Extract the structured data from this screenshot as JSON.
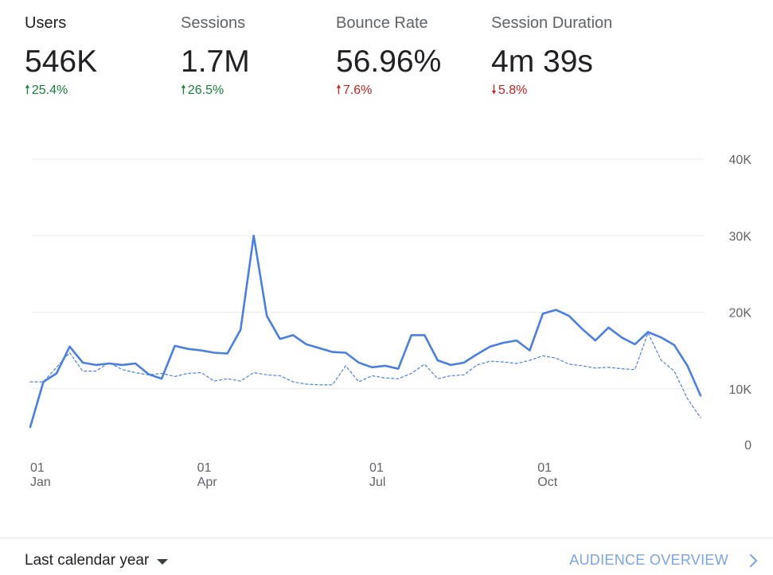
{
  "metrics": [
    {
      "label": "Users",
      "value": "546K",
      "change": "25.4%",
      "direction": "up",
      "sentiment": "good",
      "active": true
    },
    {
      "label": "Sessions",
      "value": "1.7M",
      "change": "26.5%",
      "direction": "up",
      "sentiment": "good",
      "active": false
    },
    {
      "label": "Bounce Rate",
      "value": "56.96%",
      "change": "7.6%",
      "direction": "up",
      "sentiment": "bad",
      "active": false
    },
    {
      "label": "Session Duration",
      "value": "4m 39s",
      "change": "5.8%",
      "direction": "down",
      "sentiment": "bad",
      "active": false
    }
  ],
  "colors": {
    "good": "#188038",
    "bad": "#c5221f",
    "line": "#4a7fe0",
    "link": "#7ba3e8"
  },
  "chart_data": {
    "type": "line",
    "y_ticks": [
      "40K",
      "30K",
      "20K",
      "10K",
      "0"
    ],
    "y_tick_values": [
      40000,
      30000,
      20000,
      10000,
      0
    ],
    "ylim": [
      0,
      40000
    ],
    "x_ticks": [
      {
        "day": "01",
        "month": "Jan",
        "week": 0
      },
      {
        "day": "01",
        "month": "Apr",
        "week": 12.7
      },
      {
        "day": "01",
        "month": "Jul",
        "week": 25.8
      },
      {
        "day": "01",
        "month": "Oct",
        "week": 38.6
      }
    ],
    "grid": true,
    "series": [
      {
        "style": "solid",
        "values": [
          5000,
          10900,
          12000,
          15500,
          13400,
          13100,
          13300,
          13100,
          13300,
          11900,
          11300,
          15600,
          15200,
          15000,
          14700,
          14600,
          17700,
          30000,
          19500,
          16500,
          17000,
          15800,
          15300,
          14800,
          14700,
          13400,
          12800,
          13000,
          12600,
          17000,
          17000,
          13700,
          13100,
          13400,
          14500,
          15500,
          16000,
          16300,
          15000,
          19800,
          20300,
          19500,
          17800,
          16300,
          18000,
          16700,
          15800,
          17400,
          16700,
          15700,
          13000,
          9100
        ]
      },
      {
        "style": "dashed",
        "values": [
          10900,
          10900,
          12800,
          14700,
          12300,
          12300,
          13400,
          12500,
          12100,
          11800,
          12000,
          11600,
          12000,
          12100,
          11000,
          11300,
          11000,
          12100,
          11800,
          11700,
          10900,
          10600,
          10500,
          10500,
          13000,
          10900,
          11700,
          11400,
          11300,
          12000,
          13200,
          11300,
          11700,
          11800,
          13100,
          13600,
          13500,
          13300,
          13700,
          14300,
          14000,
          13200,
          13000,
          12700,
          12800,
          12600,
          12500,
          17300,
          13700,
          12300,
          8700,
          6200
        ]
      }
    ]
  },
  "footer": {
    "range_label": "Last calendar year",
    "overview_label": "AUDIENCE OVERVIEW"
  }
}
